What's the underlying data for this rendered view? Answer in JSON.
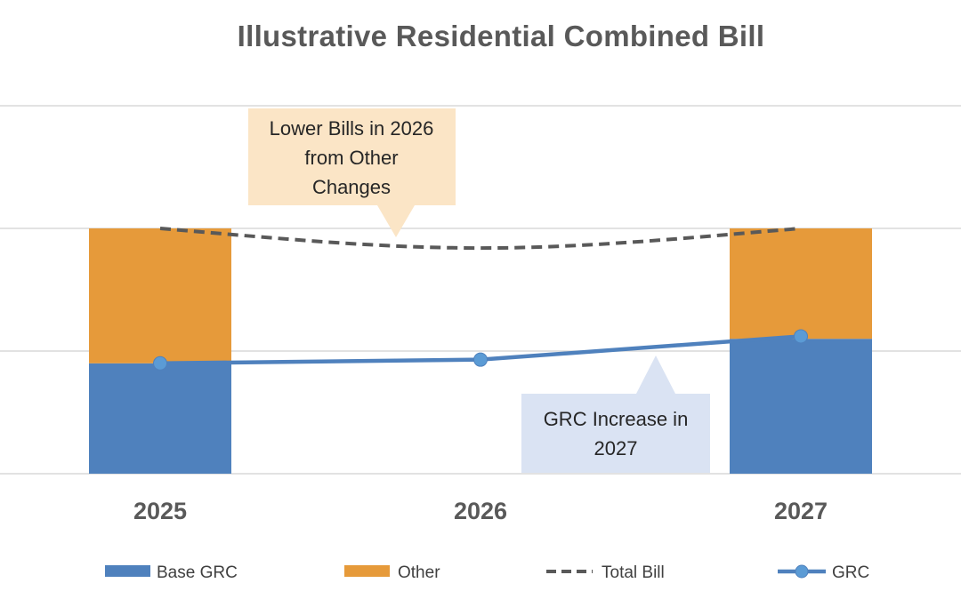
{
  "chart_data": {
    "type": "bar",
    "title": "Illustrative Residential Combined Bill",
    "xlabel": "",
    "ylabel": "",
    "categories": [
      "2025",
      "2026",
      "2027"
    ],
    "ylim": [
      0,
      3
    ],
    "grid": true,
    "legend_position": "bottom",
    "series": [
      {
        "name": "Base GRC",
        "kind": "stacked-bar",
        "color": "#4f81bd",
        "values": [
          0.9,
          null,
          1.1
        ]
      },
      {
        "name": "Other",
        "kind": "stacked-bar",
        "color": "#e69a3a",
        "values": [
          1.1,
          null,
          0.9
        ]
      },
      {
        "name": "Total Bill",
        "kind": "dashed-line",
        "color": "#595959",
        "values": [
          2.0,
          1.84,
          2.0
        ]
      },
      {
        "name": "GRC",
        "kind": "line-markers",
        "color": "#4f81bd",
        "values": [
          0.9,
          0.93,
          1.12
        ]
      }
    ],
    "annotations": [
      {
        "id": "callout-lower-bills",
        "lines": [
          "Lower Bills in 2026",
          "from Other",
          "Changes"
        ]
      },
      {
        "id": "callout-grc-increase",
        "lines": [
          "GRC Increase in",
          "2027"
        ]
      }
    ]
  }
}
